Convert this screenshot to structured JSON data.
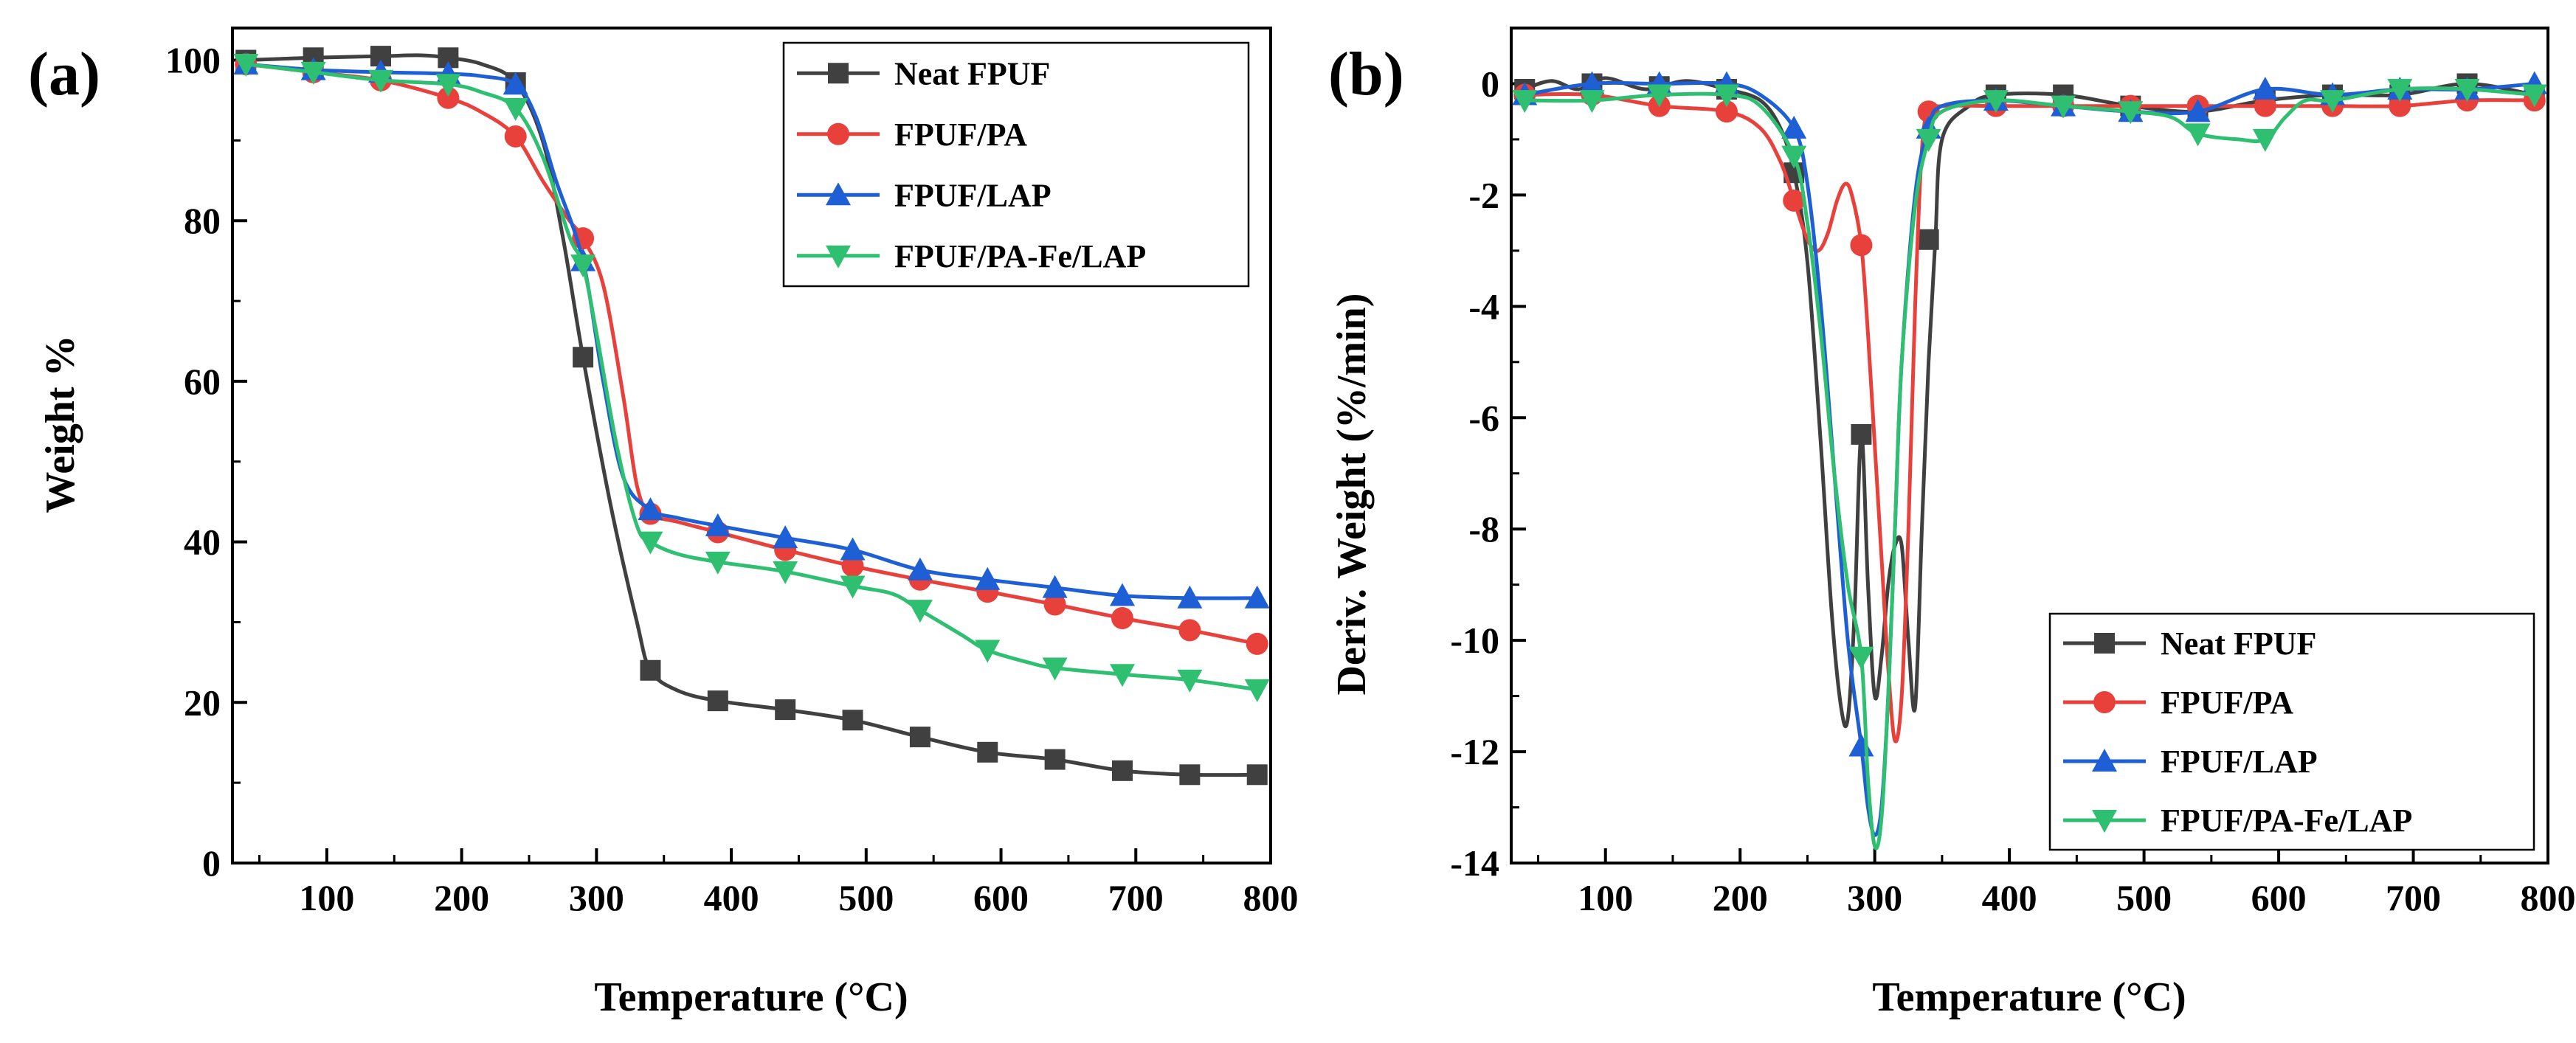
{
  "chart_data": [
    {
      "panel": "(a)",
      "type": "line",
      "xlabel": "Temperature (°C)",
      "ylabel": "Weight %",
      "xlim": [
        30,
        800
      ],
      "ylim": [
        0,
        104
      ],
      "xticks": [
        100,
        200,
        300,
        400,
        500,
        600,
        700,
        800
      ],
      "yticks": [
        0,
        20,
        40,
        60,
        80,
        100
      ],
      "legend_position": "top-right",
      "series": [
        {
          "name": "Neat FPUF",
          "color": "#404040",
          "marker": "square",
          "x": [
            40,
            90,
            140,
            170,
            190,
            215,
            240,
            260,
            275,
            290,
            310,
            330,
            340,
            360,
            390,
            440,
            490,
            540,
            590,
            640,
            690,
            740,
            790
          ],
          "y": [
            100,
            100.3,
            100.5,
            100.6,
            100.3,
            99.5,
            97.2,
            90,
            78,
            63,
            45,
            30,
            24,
            21.5,
            20.2,
            19.1,
            17.8,
            15.7,
            13.8,
            12.9,
            11.5,
            11,
            11
          ],
          "marker_x": [
            40,
            90,
            140,
            190,
            240,
            290,
            340,
            390,
            440,
            490,
            540,
            590,
            640,
            690,
            740,
            790
          ],
          "marker_y": [
            100,
            100.3,
            100.5,
            100.3,
            97.2,
            63,
            24,
            20.2,
            19.1,
            17.8,
            15.7,
            13.8,
            12.9,
            11.5,
            11,
            11
          ]
        },
        {
          "name": "FPUF/PA",
          "color": "#e8403a",
          "marker": "circle",
          "x": [
            40,
            90,
            140,
            190,
            215,
            240,
            260,
            280,
            290,
            305,
            320,
            330,
            340,
            360,
            390,
            440,
            490,
            540,
            590,
            640,
            690,
            740,
            790
          ],
          "y": [
            99.5,
            98.5,
            97.5,
            95.3,
            93.5,
            90.5,
            85,
            80,
            77.8,
            72,
            58,
            47,
            43.5,
            42.5,
            41.2,
            39,
            37,
            35.3,
            33.8,
            32.2,
            30.5,
            29,
            27.3
          ],
          "marker_x": [
            40,
            90,
            140,
            190,
            240,
            290,
            340,
            390,
            440,
            490,
            540,
            590,
            640,
            690,
            740,
            790
          ],
          "marker_y": [
            99.5,
            98.5,
            97.5,
            95.3,
            90.5,
            77.8,
            43.5,
            41.2,
            39,
            37,
            35.3,
            33.8,
            32.2,
            30.5,
            29,
            27.3
          ]
        },
        {
          "name": "FPUF/LAP",
          "color": "#1f5fd6",
          "marker": "triangle-up",
          "x": [
            40,
            90,
            140,
            190,
            215,
            240,
            255,
            270,
            290,
            305,
            320,
            340,
            360,
            390,
            440,
            490,
            540,
            590,
            640,
            690,
            740,
            790
          ],
          "y": [
            99.5,
            98.8,
            98.5,
            98.3,
            98,
            97,
            93,
            85,
            75,
            60,
            48,
            44,
            43,
            42,
            40.5,
            39,
            36.5,
            35.3,
            34.3,
            33.3,
            33,
            33
          ],
          "marker_x": [
            40,
            90,
            140,
            190,
            240,
            290,
            340,
            390,
            440,
            490,
            540,
            590,
            640,
            690,
            740,
            790
          ],
          "marker_y": [
            99.5,
            98.8,
            98.5,
            98.3,
            97,
            75,
            44,
            42,
            40.5,
            39,
            36.5,
            35.3,
            34.3,
            33.3,
            33,
            33
          ]
        },
        {
          "name": "FPUF/PA-Fe/LAP",
          "color": "#2fbf71",
          "marker": "triangle-down",
          "x": [
            40,
            90,
            140,
            190,
            215,
            240,
            260,
            280,
            290,
            300,
            315,
            330,
            340,
            360,
            390,
            440,
            490,
            520,
            540,
            570,
            590,
            620,
            640,
            690,
            740,
            790
          ],
          "y": [
            99.5,
            98.5,
            97.5,
            97,
            96,
            94,
            88,
            78,
            74.5,
            66,
            52,
            42,
            40,
            38.5,
            37.5,
            36.3,
            34.5,
            33.5,
            31.5,
            28.5,
            26.5,
            25,
            24.3,
            23.5,
            22.8,
            21.6
          ],
          "marker_x": [
            40,
            90,
            140,
            190,
            240,
            290,
            340,
            390,
            440,
            490,
            540,
            590,
            640,
            690,
            740,
            790
          ],
          "marker_y": [
            99.5,
            98.5,
            97.5,
            97,
            94,
            74.5,
            40,
            37.5,
            36.3,
            34.5,
            31.5,
            26.5,
            24.3,
            23.5,
            22.8,
            21.6
          ]
        }
      ]
    },
    {
      "panel": "(b)",
      "type": "line",
      "xlabel": "Temperature (°C)",
      "ylabel": "Deriv. Weight (%/min)",
      "xlim": [
        30,
        800
      ],
      "ylim": [
        -14,
        1
      ],
      "xticks": [
        100,
        200,
        300,
        400,
        500,
        600,
        700,
        800
      ],
      "yticks": [
        0,
        -2,
        -4,
        -6,
        -8,
        -10,
        -12,
        -14
      ],
      "legend_position": "bottom-right",
      "series": [
        {
          "name": "Neat FPUF",
          "color": "#404040",
          "marker": "square",
          "x": [
            40,
            60,
            80,
            100,
            130,
            160,
            190,
            215,
            230,
            240,
            250,
            260,
            268,
            275,
            280,
            285,
            290,
            295,
            300,
            305,
            310,
            315,
            320,
            325,
            330,
            335,
            340,
            345,
            350,
            370,
            390,
            440,
            490,
            540,
            590,
            640,
            690,
            740,
            790
          ],
          "y": [
            -0.1,
            0.05,
            -0.1,
            0.1,
            -0.1,
            0.05,
            -0.1,
            -0.3,
            -0.8,
            -1.6,
            -3.2,
            -6.5,
            -9.5,
            -11.2,
            -11.4,
            -9.5,
            -6.3,
            -9,
            -11,
            -10.3,
            -9,
            -8.3,
            -8.3,
            -10,
            -11.2,
            -8,
            -5,
            -2.8,
            -1,
            -0.4,
            -0.2,
            -0.2,
            -0.4,
            -0.5,
            -0.3,
            -0.2,
            -0.2,
            0,
            -0.2
          ],
          "marker_x": [
            40,
            90,
            140,
            190,
            240,
            290,
            340,
            390,
            440,
            490,
            540,
            590,
            640,
            690,
            740,
            790
          ],
          "marker_y": [
            -0.1,
            0,
            -0.05,
            -0.1,
            -1.6,
            -6.3,
            -2.8,
            -0.2,
            -0.2,
            -0.4,
            -0.5,
            -0.3,
            -0.2,
            -0.2,
            0,
            -0.2
          ]
        },
        {
          "name": "FPUF/PA",
          "color": "#e8403a",
          "marker": "circle",
          "x": [
            40,
            90,
            140,
            190,
            215,
            230,
            240,
            250,
            258,
            265,
            272,
            278,
            283,
            290,
            295,
            300,
            305,
            310,
            315,
            320,
            325,
            330,
            335,
            340,
            350,
            390,
            440,
            490,
            540,
            590,
            640,
            690,
            740,
            790
          ],
          "y": [
            -0.2,
            -0.2,
            -0.4,
            -0.5,
            -0.8,
            -1.4,
            -2.1,
            -2.8,
            -3,
            -2.7,
            -2.1,
            -1.8,
            -2,
            -2.9,
            -4.5,
            -6.5,
            -8.5,
            -10.5,
            -11.8,
            -11,
            -8,
            -4,
            -1.2,
            -0.5,
            -0.4,
            -0.4,
            -0.4,
            -0.4,
            -0.4,
            -0.4,
            -0.4,
            -0.4,
            -0.3,
            -0.3
          ],
          "marker_x": [
            40,
            90,
            140,
            190,
            240,
            290,
            340,
            390,
            440,
            490,
            540,
            590,
            640,
            690,
            740,
            790
          ],
          "marker_y": [
            -0.2,
            -0.2,
            -0.4,
            -0.5,
            -2.1,
            -2.9,
            -0.5,
            -0.4,
            -0.4,
            -0.4,
            -0.4,
            -0.4,
            -0.4,
            -0.4,
            -0.3,
            -0.3
          ]
        },
        {
          "name": "FPUF/LAP",
          "color": "#1f5fd6",
          "marker": "triangle-up",
          "x": [
            40,
            90,
            140,
            190,
            215,
            240,
            250,
            260,
            270,
            280,
            290,
            295,
            300,
            305,
            310,
            315,
            320,
            330,
            340,
            350,
            390,
            440,
            490,
            540,
            590,
            640,
            690,
            740,
            790
          ],
          "y": [
            -0.2,
            0,
            0,
            0,
            -0.2,
            -0.8,
            -1.8,
            -4,
            -7,
            -10,
            -11.9,
            -13,
            -13.5,
            -13,
            -11,
            -8,
            -5,
            -2,
            -0.8,
            -0.4,
            -0.3,
            -0.4,
            -0.5,
            -0.5,
            -0.1,
            -0.2,
            -0.1,
            -0.1,
            0
          ],
          "marker_x": [
            40,
            90,
            140,
            190,
            240,
            290,
            340,
            390,
            440,
            490,
            540,
            590,
            640,
            690,
            740,
            790
          ],
          "marker_y": [
            -0.2,
            0,
            0,
            0,
            -0.8,
            -11.9,
            -0.8,
            -0.3,
            -0.4,
            -0.5,
            -0.5,
            -0.1,
            -0.2,
            -0.1,
            -0.1,
            0
          ]
        },
        {
          "name": "FPUF/PA-Fe/LAP",
          "color": "#2fbf71",
          "marker": "triangle-down",
          "x": [
            40,
            90,
            140,
            190,
            215,
            240,
            250,
            260,
            270,
            280,
            290,
            295,
            300,
            305,
            310,
            315,
            320,
            330,
            340,
            350,
            390,
            440,
            490,
            520,
            540,
            570,
            590,
            605,
            620,
            640,
            690,
            740,
            790
          ],
          "y": [
            -0.3,
            -0.3,
            -0.2,
            -0.2,
            -0.4,
            -1.3,
            -2.5,
            -4.5,
            -7,
            -9,
            -10.3,
            -12.5,
            -13.7,
            -13.2,
            -11,
            -8,
            -5,
            -2.2,
            -1,
            -0.5,
            -0.3,
            -0.4,
            -0.5,
            -0.6,
            -0.9,
            -1,
            -1,
            -0.6,
            -0.3,
            -0.3,
            -0.1,
            -0.1,
            -0.2
          ],
          "marker_x": [
            40,
            90,
            140,
            190,
            240,
            290,
            340,
            390,
            440,
            490,
            540,
            590,
            640,
            690,
            740,
            790
          ],
          "marker_y": [
            -0.3,
            -0.3,
            -0.2,
            -0.2,
            -1.3,
            -10.3,
            -1,
            -0.3,
            -0.4,
            -0.5,
            -0.9,
            -1,
            -0.3,
            -0.1,
            -0.1,
            -0.2
          ]
        }
      ]
    }
  ]
}
